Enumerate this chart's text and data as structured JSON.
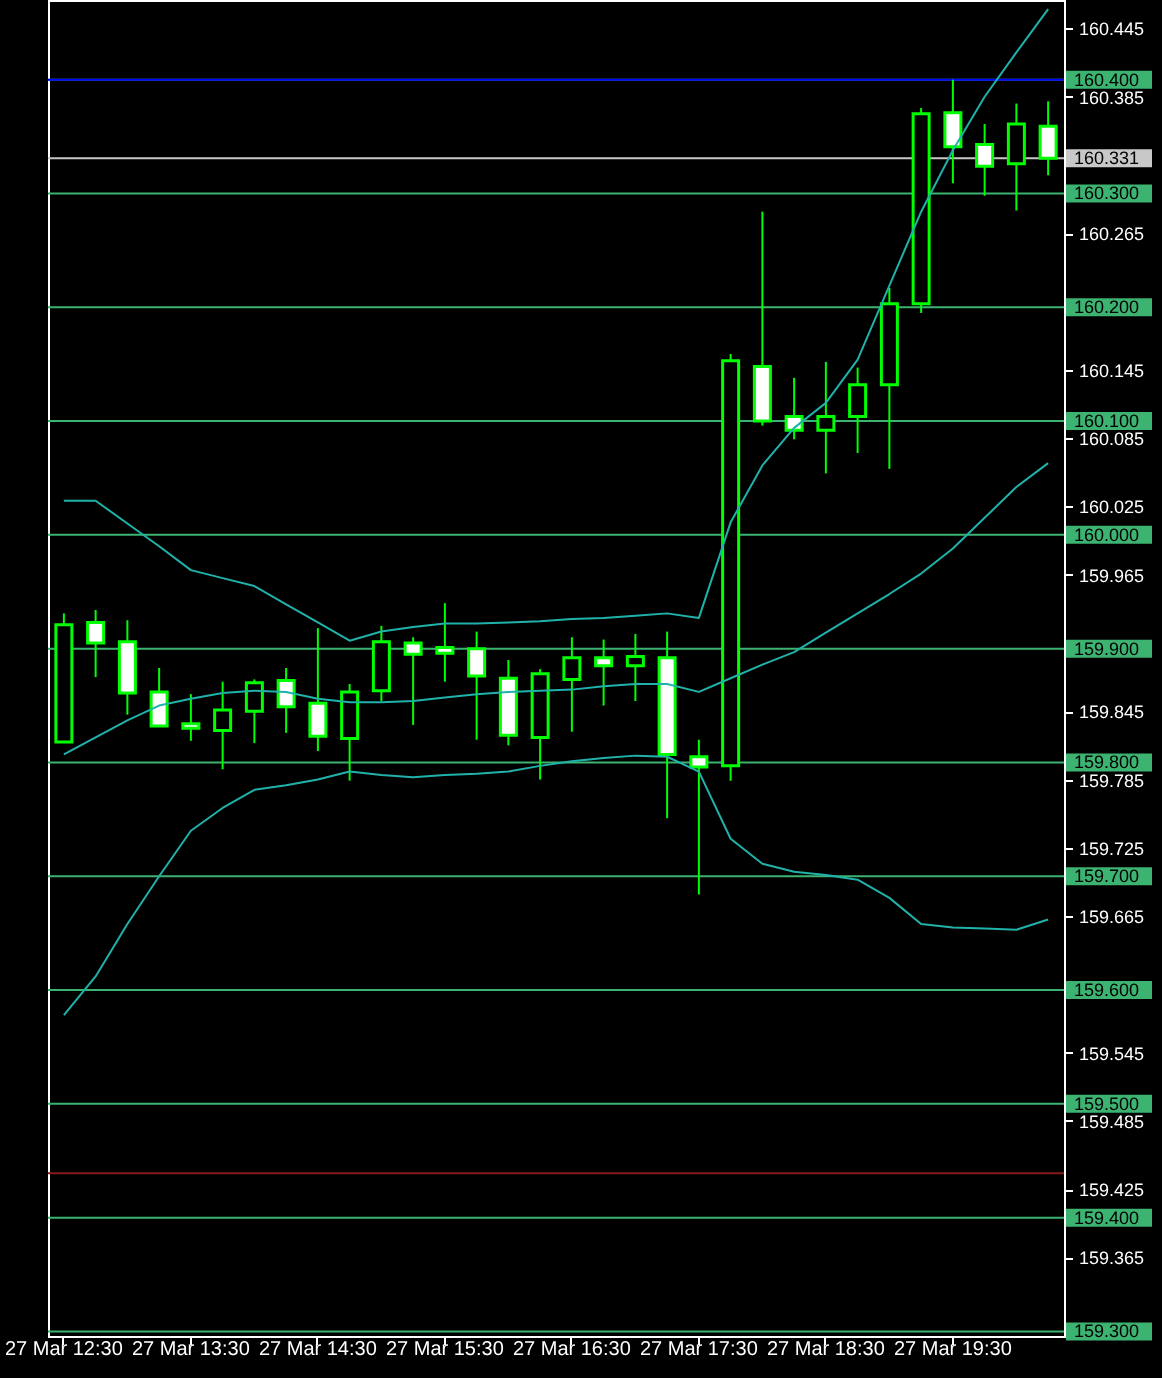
{
  "chart_data": {
    "type": "candlestick",
    "color": "#00ff00",
    "categories": [
      "27 Mar 12:30",
      null,
      null,
      null,
      "27 Mar 13:30",
      null,
      null,
      null,
      "27 Mar 14:30",
      null,
      null,
      null,
      "27 Mar 15:30",
      null,
      null,
      null,
      "27 Mar 16:30",
      null,
      null,
      null,
      "27 Mar 17:30",
      null,
      null,
      null,
      "27 Mar 18:30",
      null,
      null,
      null,
      "27 Mar 19:30",
      null,
      null,
      null
    ],
    "ohlc": [
      [
        159.818,
        159.931,
        159.818,
        159.921
      ],
      [
        159.923,
        159.934,
        159.875,
        159.905
      ],
      [
        159.906,
        159.925,
        159.842,
        159.861
      ],
      [
        159.862,
        159.883,
        159.832,
        159.832
      ],
      [
        159.834,
        159.86,
        159.819,
        159.83
      ],
      [
        159.828,
        159.871,
        159.794,
        159.846
      ],
      [
        159.845,
        159.873,
        159.817,
        159.87
      ],
      [
        159.872,
        159.883,
        159.826,
        159.849
      ],
      [
        159.852,
        159.918,
        159.81,
        159.823
      ],
      [
        159.821,
        159.869,
        159.784,
        159.862
      ],
      [
        159.863,
        159.92,
        159.854,
        159.906
      ],
      [
        159.905,
        159.91,
        159.833,
        159.895
      ],
      [
        159.901,
        159.94,
        159.871,
        159.896
      ],
      [
        159.9,
        159.915,
        159.82,
        159.876
      ],
      [
        159.874,
        159.89,
        159.815,
        159.824
      ],
      [
        159.822,
        159.882,
        159.785,
        159.878
      ],
      [
        159.873,
        159.91,
        159.827,
        159.892
      ],
      [
        159.892,
        159.908,
        159.85,
        159.885
      ],
      [
        159.885,
        159.913,
        159.854,
        159.893
      ],
      [
        159.892,
        159.915,
        159.751,
        159.807
      ],
      [
        159.805,
        159.82,
        159.684,
        159.796
      ],
      [
        159.797,
        160.159,
        159.784,
        160.153
      ],
      [
        160.148,
        160.284,
        160.096,
        160.1
      ],
      [
        160.104,
        160.138,
        160.084,
        160.092
      ],
      [
        160.092,
        160.152,
        160.054,
        160.104
      ],
      [
        160.104,
        160.147,
        160.072,
        160.132
      ],
      [
        160.132,
        160.217,
        160.058,
        160.203
      ],
      [
        160.203,
        160.375,
        160.195,
        160.37
      ],
      [
        160.371,
        160.4,
        160.309,
        160.341
      ],
      [
        160.343,
        160.361,
        160.298,
        160.324
      ],
      [
        160.326,
        160.379,
        160.285,
        160.361
      ],
      [
        160.359,
        160.381,
        160.316,
        160.331
      ]
    ],
    "colors": [
      "#000000",
      "#ffffff",
      "#ffffff",
      "#ffffff",
      "#ffffff",
      "#000000",
      "#000000",
      "#ffffff",
      "#ffffff",
      "#000000",
      "#000000",
      "#ffffff",
      "#ffffff",
      "#ffffff",
      "#ffffff",
      "#000000",
      "#000000",
      "#ffffff",
      "#000000",
      "#ffffff",
      "#ffffff",
      "#000000",
      "#ffffff",
      "#ffffff",
      "#000000",
      "#000000",
      "#000000",
      "#000000",
      "#ffffff",
      "#ffffff",
      "#000000",
      "#ffffff"
    ],
    "series": [
      {
        "type": "line",
        "color": "#20b2aa",
        "values": [
          160.03,
          160.03,
          160.01,
          159.99,
          159.969,
          159.962,
          159.955,
          159.939,
          159.923,
          159.907,
          159.915,
          159.919,
          159.922,
          159.922,
          159.923,
          159.924,
          159.926,
          159.927,
          159.929,
          159.931,
          159.927,
          160.011,
          160.061,
          160.094,
          160.116,
          160.154,
          160.219,
          160.284,
          160.338,
          160.385,
          160.424,
          160.462
        ]
      },
      {
        "type": "line",
        "color": "#20b2aa",
        "values": [
          159.807,
          159.822,
          159.837,
          159.85,
          159.856,
          159.861,
          159.863,
          159.862,
          159.856,
          159.853,
          159.853,
          159.854,
          159.857,
          159.86,
          159.862,
          159.863,
          159.864,
          159.867,
          159.869,
          159.869,
          159.862,
          159.874,
          159.886,
          159.897,
          159.914,
          159.931,
          159.948,
          159.966,
          159.988,
          160.015,
          160.042,
          160.063
        ]
      },
      {
        "type": "line",
        "color": "#20b2aa",
        "values": [
          159.578,
          159.612,
          159.658,
          159.7,
          159.74,
          159.76,
          159.776,
          159.78,
          159.785,
          159.792,
          159.789,
          159.787,
          159.789,
          159.79,
          159.792,
          159.797,
          159.801,
          159.804,
          159.806,
          159.805,
          159.792,
          159.733,
          159.711,
          159.704,
          159.701,
          159.697,
          159.681,
          159.658,
          159.655,
          159.654,
          159.653,
          159.662
        ]
      }
    ],
    "ylim": [
      159.296,
      160.47
    ],
    "yticks": [
      160.445,
      160.385,
      160.265,
      160.145,
      160.085,
      160.025,
      159.965,
      159.845,
      159.785,
      159.725,
      159.665,
      159.545,
      159.485,
      159.425,
      159.365
    ],
    "ref_lines": [
      {
        "axis": "y",
        "value": 160.4,
        "label": "160.400",
        "color": "#3cb371"
      },
      {
        "axis": "y",
        "value": 160.4,
        "color": "#0000ff"
      },
      {
        "axis": "y",
        "value": 160.331,
        "label": "160.331",
        "color": "#c8c8c8"
      },
      {
        "axis": "y",
        "value": 160.3,
        "label": "160.300",
        "color": "#3cb371"
      },
      {
        "axis": "y",
        "value": 160.2,
        "label": "160.200",
        "color": "#3cb371"
      },
      {
        "axis": "y",
        "value": 160.1,
        "label": "160.100",
        "color": "#3cb371"
      },
      {
        "axis": "y",
        "value": 160.0,
        "label": "160.000",
        "color": "#3cb371"
      },
      {
        "axis": "y",
        "value": 159.9,
        "label": "159.900",
        "color": "#3cb371"
      },
      {
        "axis": "y",
        "value": 159.8,
        "label": "159.800",
        "color": "#3cb371"
      },
      {
        "axis": "y",
        "value": 159.7,
        "label": "159.700",
        "color": "#3cb371"
      },
      {
        "axis": "y",
        "value": 159.6,
        "label": "159.600",
        "color": "#3cb371"
      },
      {
        "axis": "y",
        "value": 159.5,
        "label": "159.500",
        "color": "#3cb371"
      },
      {
        "axis": "y",
        "value": 159.439,
        "color": "#8b1a1a"
      },
      {
        "axis": "y",
        "value": 159.4,
        "label": "159.400",
        "color": "#3cb371"
      },
      {
        "axis": "y",
        "value": 159.3,
        "label": "159.300",
        "color": "#3cb371"
      }
    ],
    "grid": false
  }
}
